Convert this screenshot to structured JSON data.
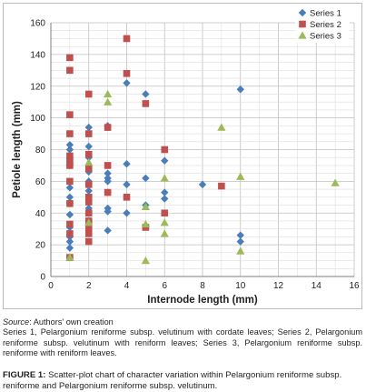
{
  "chart_data": {
    "type": "scatter",
    "xlabel": "Internode length (mm)",
    "ylabel": "Petiole length (mm)",
    "xlim": [
      0,
      16
    ],
    "ylim": [
      0,
      160
    ],
    "x_ticks": [
      "0",
      "2",
      "4",
      "6",
      "8",
      "10",
      "12",
      "14",
      "16"
    ],
    "y_ticks": [
      "0",
      "20",
      "40",
      "60",
      "80",
      "100",
      "120",
      "140",
      "160"
    ],
    "grid": true,
    "legend_position": "top-right",
    "series": [
      {
        "name": "Series 1",
        "marker": "diamond",
        "color": "#4a7ebb",
        "points": [
          [
            1,
            83
          ],
          [
            1,
            80
          ],
          [
            1,
            70
          ],
          [
            1,
            56
          ],
          [
            1,
            50
          ],
          [
            1,
            46
          ],
          [
            1,
            39
          ],
          [
            1,
            31
          ],
          [
            1,
            25
          ],
          [
            1,
            22
          ],
          [
            1,
            18
          ],
          [
            1,
            12
          ],
          [
            2,
            94
          ],
          [
            2,
            82
          ],
          [
            2,
            75
          ],
          [
            2,
            66
          ],
          [
            2,
            60
          ],
          [
            2,
            54
          ],
          [
            2,
            43
          ],
          [
            2,
            40
          ],
          [
            2,
            35
          ],
          [
            3,
            95
          ],
          [
            3,
            65
          ],
          [
            3,
            62
          ],
          [
            3,
            60
          ],
          [
            3,
            53
          ],
          [
            3,
            43
          ],
          [
            3,
            41
          ],
          [
            3,
            29
          ],
          [
            4,
            122
          ],
          [
            4,
            71
          ],
          [
            4,
            58
          ],
          [
            4,
            40
          ],
          [
            5,
            115
          ],
          [
            5,
            62
          ],
          [
            5,
            45
          ],
          [
            5,
            32
          ],
          [
            6,
            73
          ],
          [
            6,
            53
          ],
          [
            6,
            49
          ],
          [
            8,
            58
          ],
          [
            10,
            118
          ],
          [
            10,
            26
          ],
          [
            10,
            22
          ]
        ]
      },
      {
        "name": "Series 2",
        "marker": "square",
        "color": "#c0504d",
        "points": [
          [
            1,
            138
          ],
          [
            1,
            130
          ],
          [
            1,
            102
          ],
          [
            1,
            90
          ],
          [
            1,
            76
          ],
          [
            1,
            73
          ],
          [
            1,
            70
          ],
          [
            1,
            60
          ],
          [
            1,
            46
          ],
          [
            1,
            33
          ],
          [
            1,
            27
          ],
          [
            1,
            12
          ],
          [
            2,
            115
          ],
          [
            2,
            90
          ],
          [
            2,
            77
          ],
          [
            2,
            68
          ],
          [
            2,
            58
          ],
          [
            2,
            50
          ],
          [
            2,
            47
          ],
          [
            2,
            40
          ],
          [
            2,
            35
          ],
          [
            2,
            31
          ],
          [
            2,
            27
          ],
          [
            2,
            22
          ],
          [
            3,
            94
          ],
          [
            3,
            70
          ],
          [
            3,
            53
          ],
          [
            4,
            150
          ],
          [
            4,
            128
          ],
          [
            4,
            50
          ],
          [
            5,
            109
          ],
          [
            5,
            31
          ],
          [
            6,
            80
          ],
          [
            6,
            40
          ],
          [
            9,
            57
          ]
        ]
      },
      {
        "name": "Series 3",
        "marker": "triangle",
        "color": "#9bbb59",
        "points": [
          [
            1,
            12
          ],
          [
            2,
            72
          ],
          [
            2,
            34
          ],
          [
            3,
            115
          ],
          [
            3,
            110
          ],
          [
            5,
            44
          ],
          [
            5,
            33
          ],
          [
            5,
            10
          ],
          [
            6,
            62
          ],
          [
            6,
            34
          ],
          [
            6,
            27
          ],
          [
            9,
            94
          ],
          [
            10,
            63
          ],
          [
            10,
            16
          ],
          [
            15,
            59
          ]
        ]
      }
    ]
  },
  "captions": {
    "source_label": "Source",
    "source_text": ": Authors' own creation",
    "series_note": "Series 1, Pelargonium reniforme subsp. velutinum with cordate leaves; Series 2, Pelargonium reniforme subsp. velutinum with reniform leaves; Series 3, Pelargonium reniforme subsp. reniforme with reniform leaves.",
    "figure_label": "FIGURE 1:",
    "figure_text": " Scatter-plot chart of character variation within Pelargonium reniforme subsp. reniforme and Pelargonium reniforme subsp. velutinum."
  }
}
